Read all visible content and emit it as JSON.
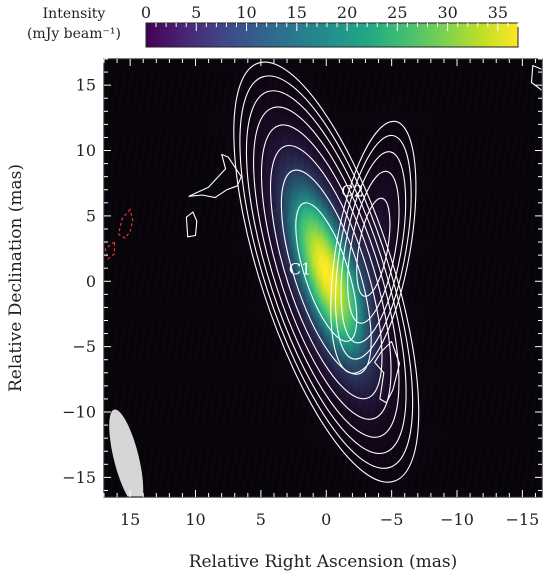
{
  "chart_data": {
    "type": "heatmap",
    "xlabel": "Relative Right Ascension (mas)",
    "ylabel": "Relative Declination (mas)",
    "xlim": [
      17,
      -16.5
    ],
    "ylim": [
      -16.5,
      17
    ],
    "x_ticks": [
      15,
      10,
      5,
      0,
      -5,
      -10,
      -15
    ],
    "x_tick_labels": [
      "15",
      "10",
      "5",
      "0",
      "−5",
      "−10",
      "−15"
    ],
    "y_ticks": [
      15,
      10,
      5,
      0,
      -5,
      -10,
      -15
    ],
    "y_tick_labels": [
      "15",
      "10",
      "5",
      "0",
      "−5",
      "−10",
      "−15"
    ],
    "colorbar": {
      "label_line1": "Intensity",
      "label_line2": "(mJy beam⁻¹)",
      "min": 0,
      "max": 37,
      "ticks": [
        0,
        5,
        10,
        15,
        20,
        25,
        30,
        35
      ],
      "tick_labels": [
        "0",
        "5",
        "10",
        "15",
        "20",
        "25",
        "30",
        "35"
      ],
      "colormap": "viridis"
    },
    "components": [
      {
        "label": "C1",
        "x": 0,
        "y": 0.7,
        "peak": 37,
        "major_fwhm": 12,
        "minor_fwhm": 3.6,
        "pa_deg": 18
      },
      {
        "label": "C2",
        "x": -3.6,
        "y": 2.6,
        "peak": 4.2,
        "major_fwhm": 9.0,
        "minor_fwhm": 2.6,
        "pa_deg": -10
      }
    ],
    "labels": [
      {
        "text": "C1",
        "x": 2.0,
        "y": 0.5
      },
      {
        "text": "C2",
        "x": -2.0,
        "y": 6.5
      }
    ],
    "extra_contours": [
      {
        "name": "patch-ne",
        "pts": [
          [
            6.5,
            8
          ],
          [
            7.5,
            9.5
          ],
          [
            8,
            9.7
          ],
          [
            7.7,
            8.6
          ],
          [
            9,
            7.2
          ],
          [
            10.5,
            6.5
          ],
          [
            9.5,
            6.6
          ],
          [
            8.5,
            6.4
          ],
          [
            7.6,
            7.0
          ],
          [
            6.8,
            7.3
          ]
        ]
      },
      {
        "name": "patch-small",
        "pts": [
          [
            10.2,
            5.3
          ],
          [
            10.7,
            4.9
          ],
          [
            10.6,
            3.4
          ],
          [
            10.0,
            3.5
          ],
          [
            9.9,
            4.6
          ]
        ]
      },
      {
        "name": "patch-south",
        "pts": [
          [
            -4.2,
            -5.4
          ],
          [
            -5.0,
            -4.6
          ],
          [
            -5.6,
            -6.3
          ],
          [
            -5.1,
            -8.3
          ],
          [
            -4.6,
            -9.3
          ],
          [
            -4.1,
            -9.0
          ],
          [
            -4.4,
            -7.0
          ],
          [
            -3.7,
            -6.2
          ]
        ]
      },
      {
        "name": "patch-corner",
        "pts": [
          [
            -15.8,
            16.5
          ],
          [
            -16.5,
            16.2
          ],
          [
            -16.5,
            14.6
          ],
          [
            -15.7,
            15.2
          ]
        ]
      }
    ],
    "negative_contours": [
      {
        "name": "neg-1",
        "pts": [
          [
            15.0,
            5.5
          ],
          [
            15.6,
            4.8
          ],
          [
            15.9,
            3.6
          ],
          [
            15.4,
            3.3
          ],
          [
            15.0,
            3.8
          ],
          [
            14.8,
            4.7
          ]
        ]
      },
      {
        "name": "neg-2",
        "pts": [
          [
            16.2,
            3.0
          ],
          [
            16.9,
            2.5
          ],
          [
            16.7,
            1.7
          ],
          [
            16.2,
            2.1
          ]
        ]
      }
    ],
    "contour_levels": [
      0.16,
      0.32,
      0.64,
      1.28,
      2.56,
      5.12,
      10.24,
      20.48
    ],
    "beam": {
      "x": 15.3,
      "y": -13.5,
      "major": 7.6,
      "minor": 1.9,
      "pa_deg": 14
    },
    "grid": false,
    "colors": {
      "positive_contour": "#ffffff",
      "negative_contour": "#e8332c",
      "beam": "#d6d6d6",
      "background": "#000000"
    }
  }
}
